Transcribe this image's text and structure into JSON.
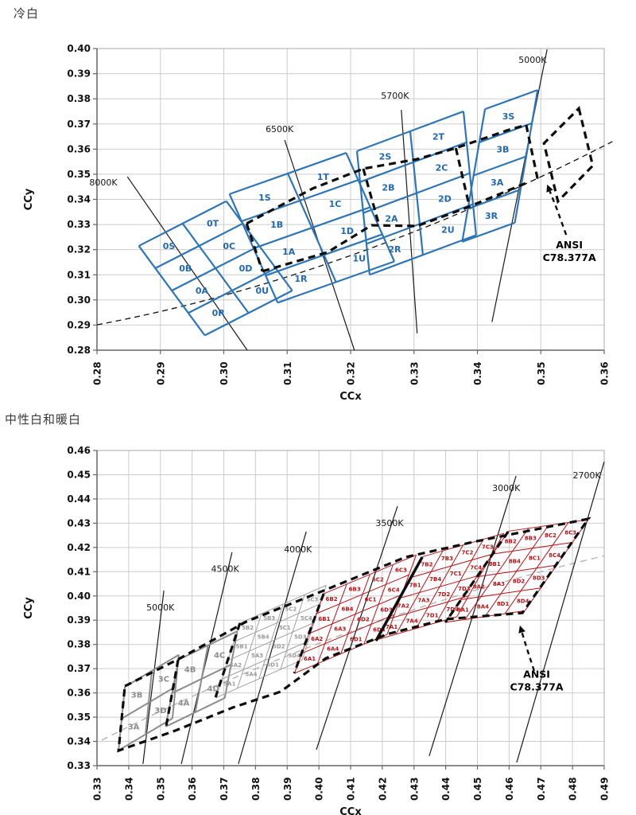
{
  "page": {
    "title_cool": "冷白",
    "title_warm": "中性白和暖白"
  },
  "colors": {
    "grid": "#cccccc",
    "border": "#aaaaaa",
    "axis": "#666666",
    "tick_text": "#111111",
    "blue_mesh": "#2e75b6",
    "blue_label": "#2269ad",
    "gray_mesh": "#8c8c8c",
    "lightgray_mesh": "#a0a0a0",
    "red_mesh": "#b41216",
    "ansi_dash": "#0d0d0d",
    "locus_black": "#111111",
    "locus_gray": "#b0b0b0"
  },
  "ansi_note": "ANSI C78.377A",
  "chart_data": [
    {
      "type": "line",
      "name": "cool-white-binning",
      "title": "冷白",
      "xlabel": "CCx",
      "ylabel": "CCy",
      "x_min": 0.28,
      "x_max": 0.36,
      "y_min": 0.28,
      "y_max": 0.4,
      "tick_step": 0.01,
      "grid": true,
      "groups": [
        {
          "name": "group-0",
          "o": [
            0.2866,
            0.3215
          ],
          "c": [
            0.0069,
            0.0089
          ],
          "r": [
            0.0026,
            -0.0089
          ],
          "cols": 2,
          "rows": 4,
          "color": "#2e75b6",
          "lc": "#2269ad",
          "fs": 11,
          "sw": 2.2,
          "labels": [
            [
              "0S",
              "0T"
            ],
            [
              "0B",
              "0C"
            ],
            [
              "0A",
              "0D"
            ],
            [
              "0R",
              "0U"
            ]
          ]
        },
        {
          "name": "group-1",
          "o": [
            0.3009,
            0.3421
          ],
          "c": [
            0.0092,
            0.0082
          ],
          "r": [
            0.0019,
            -0.0108
          ],
          "cols": 2,
          "rows": 4,
          "color": "#2e75b6",
          "lc": "#2269ad",
          "fs": 11,
          "sw": 2.2,
          "labels": [
            [
              "1S",
              "1T"
            ],
            [
              "1B",
              "1C"
            ],
            [
              "1A",
              "1D"
            ],
            [
              "1R",
              "1U"
            ]
          ]
        },
        {
          "name": "group-2",
          "o": [
            0.321,
            0.3592
          ],
          "c": [
            0.0084,
            0.0079
          ],
          "r": [
            0.0005,
            -0.0123
          ],
          "cols": 2,
          "rows": 4,
          "color": "#2e75b6",
          "lc": "#2269ad",
          "fs": 11,
          "sw": 2.2,
          "labels": [
            [
              "2S",
              "2T"
            ],
            [
              "2B",
              "2C"
            ],
            [
              "2A",
              "2D"
            ],
            [
              "2R",
              "2U"
            ]
          ]
        },
        {
          "name": "group-3",
          "o": [
            0.3412,
            0.3759
          ],
          "c": [
            0.0083,
            0.0076
          ],
          "r": [
            -0.0009,
            -0.0132
          ],
          "cols": 1,
          "rows": 4,
          "color": "#2e75b6",
          "lc": "#2269ad",
          "fs": 11,
          "sw": 2.2,
          "labels": [
            [
              "3S"
            ],
            [
              "3B"
            ],
            [
              "3A"
            ],
            [
              "3R"
            ]
          ]
        }
      ],
      "cct_lines": [
        {
          "label": "8000K",
          "x1": 0.2848,
          "y1": 0.349,
          "x2": 0.3037,
          "y2": 0.28,
          "lx": 0.281,
          "ly": 0.3455
        },
        {
          "label": "6500K",
          "x1": 0.3096,
          "y1": 0.3636,
          "x2": 0.3206,
          "y2": 0.28,
          "lx": 0.3088,
          "ly": 0.3667
        },
        {
          "label": "5700K",
          "x1": 0.328,
          "y1": 0.3756,
          "x2": 0.3305,
          "y2": 0.2867,
          "lx": 0.327,
          "ly": 0.38
        },
        {
          "label": "5000K",
          "x1": 0.351,
          "y1": 0.3997,
          "x2": 0.3423,
          "y2": 0.2912,
          "lx": 0.3487,
          "ly": 0.3943
        }
      ],
      "locus": {
        "x1": 0.28,
        "y1": 0.2901,
        "cx": 0.3194,
        "cy": 0.3088,
        "x2": 0.3613,
        "y2": 0.363,
        "color": "#111111",
        "dash": "7 5"
      },
      "overlay": [
        {
          "pts": [
            [
              0.3036,
              0.3304
            ],
            [
              0.314,
              0.3443
            ],
            [
              0.322,
              0.3522
            ],
            [
              0.3305,
              0.356
            ],
            [
              0.3366,
              0.3604
            ],
            [
              0.345,
              0.3677
            ],
            [
              0.3477,
              0.3696
            ]
          ],
          "style": "dash"
        },
        {
          "pts": [
            [
              0.3036,
              0.3304
            ],
            [
              0.3061,
              0.3114
            ]
          ],
          "style": "dash"
        },
        {
          "pts": [
            [
              0.3061,
              0.3114
            ],
            [
              0.3164,
              0.319
            ],
            [
              0.3233,
              0.3297
            ],
            [
              0.3305,
              0.3294
            ],
            [
              0.338,
              0.3364
            ],
            [
              0.3477,
              0.3465
            ]
          ],
          "style": "dash"
        },
        {
          "pts": [
            [
              0.3477,
              0.3696
            ],
            [
              0.3495,
              0.3481
            ]
          ],
          "style": "dash"
        },
        {
          "pts": [
            [
              0.322,
              0.3522
            ],
            [
              0.3245,
              0.3297
            ]
          ],
          "style": "dash"
        },
        {
          "pts": [
            [
              0.3366,
              0.3604
            ],
            [
              0.3387,
              0.3376
            ]
          ],
          "style": "dash"
        },
        {
          "pts": [
            [
              0.356,
              0.3762
            ],
            [
              0.3582,
              0.3534
            ],
            [
              0.3527,
              0.3392
            ],
            [
              0.3505,
              0.3623
            ]
          ],
          "closed": true,
          "style": "dash"
        }
      ],
      "ansi_arrow": {
        "tail": [
          [
            0.354,
            0.3259
          ],
          [
            0.3525,
            0.3364
          ]
        ],
        "head": [
          0.351,
          0.3459
        ],
        "label_lines": [
          "ANSI",
          "C78.377A"
        ],
        "label_pos": [
          0.3545,
          0.3205
        ]
      }
    },
    {
      "type": "line",
      "name": "neutral-warm-white-binning",
      "title": "中性白和暖白",
      "xlabel": "CCx",
      "ylabel": "CCy",
      "x_min": 0.33,
      "x_max": 0.49,
      "y_min": 0.33,
      "y_max": 0.46,
      "tick_step": 0.01,
      "grid": true,
      "groups": [
        {
          "name": "group-3",
          "o": [
            0.3388,
            0.3625
          ],
          "c": [
            0.0085,
            0.0066
          ],
          "r": [
            -0.001,
            -0.0131
          ],
          "cols": 2,
          "rows": 2,
          "color": "#8c8c8c",
          "lc": "#8c8c8c",
          "fs": 10,
          "sw": 2,
          "labels": [
            [
              "3B",
              "3C"
            ],
            [
              "3A",
              "3D"
            ]
          ]
        },
        {
          "name": "group-4",
          "o": [
            0.3557,
            0.3737
          ],
          "c": [
            0.0093,
            0.0059
          ],
          "r": [
            -0.002,
            -0.0138
          ],
          "cols": 2,
          "rows": 2,
          "color": "#8c8c8c",
          "lc": "#8c8c8c",
          "fs": 10,
          "sw": 2,
          "labels": [
            [
              "4B",
              "4C"
            ],
            [
              "4A",
              "4D"
            ]
          ]
        },
        {
          "name": "group-5",
          "o": [
            0.3751,
            0.3888
          ],
          "c": [
            0.0068,
            0.0039
          ],
          "r": [
            -0.0019,
            -0.0077
          ],
          "cols": 4,
          "rows": 4,
          "color": "#a0a0a0",
          "lc": "#999999",
          "fs": 7,
          "sw": 1,
          "labels": [
            [
              "5B2",
              "5B3",
              "5C2",
              "5C3"
            ],
            [
              "5B1",
              "5B4",
              "5C1",
              "5C4"
            ],
            [
              "5A2",
              "5A3",
              "5D2",
              "5D3"
            ],
            [
              "5A1",
              "5A4",
              "5D1",
              "5D4"
            ]
          ]
        },
        {
          "name": "group-6",
          "o": [
            0.4015,
            0.4009
          ],
          "c": [
            0.0073,
            0.004
          ],
          "r": [
            -0.0023,
            -0.0082
          ],
          "cols": 4,
          "rows": 4,
          "color": "#b41216",
          "lc": "#b41216",
          "fs": 7,
          "sw": 1,
          "labels": [
            [
              "6B2",
              "6B3",
              "6C2",
              "6C3"
            ],
            [
              "6B1",
              "6B4",
              "6C1",
              "6C4"
            ],
            [
              "6A2",
              "6A3",
              "6D2",
              "6D3"
            ],
            [
              "6A1",
              "6A4",
              "6D1",
              "6D4"
            ]
          ]
        },
        {
          "name": "group-7",
          "o": [
            0.4327,
            0.4162
          ],
          "c": [
            0.0064,
            0.0024
          ],
          "r": [
            -0.0037,
            -0.0086
          ],
          "cols": 4,
          "rows": 4,
          "color": "#b41216",
          "lc": "#b41216",
          "fs": 7,
          "sw": 1,
          "labels": [
            [
              "7B2",
              "7B3",
              "7C2",
              "7C3"
            ],
            [
              "7B1",
              "7B4",
              "7C1",
              "7C4"
            ],
            [
              "7A2",
              "7A3",
              "7D2",
              "7D3"
            ],
            [
              "7A1",
              "7A4",
              "7D1",
              "7D4"
            ]
          ]
        },
        {
          "name": "group-8",
          "o": [
            0.4598,
            0.4267
          ],
          "c": [
            0.0063,
            0.0012
          ],
          "r": [
            -0.005,
            -0.0094
          ],
          "cols": 4,
          "rows": 4,
          "color": "#b41216",
          "lc": "#b41216",
          "fs": 7,
          "sw": 1,
          "labels": [
            [
              "8B2",
              "8B3",
              "8C2",
              "8C3"
            ],
            [
              "8B1",
              "8B4",
              "8C1",
              "8C4"
            ],
            [
              "8A2",
              "8A3",
              "8D2",
              "8D3"
            ],
            [
              "8A1",
              "8A4",
              "8D1",
              "8D4"
            ]
          ]
        }
      ],
      "cct_lines": [
        {
          "label": "5000K",
          "x1": 0.3511,
          "y1": 0.4022,
          "x2": 0.3445,
          "y2": 0.3307,
          "lx": 0.35,
          "ly": 0.394
        },
        {
          "label": "4500K",
          "x1": 0.3726,
          "y1": 0.418,
          "x2": 0.3566,
          "y2": 0.3307,
          "lx": 0.3704,
          "ly": 0.41
        },
        {
          "label": "4000K",
          "x1": 0.396,
          "y1": 0.4265,
          "x2": 0.3746,
          "y2": 0.3307,
          "lx": 0.3934,
          "ly": 0.418
        },
        {
          "label": "3500K",
          "x1": 0.4248,
          "y1": 0.437,
          "x2": 0.3992,
          "y2": 0.3366,
          "lx": 0.4223,
          "ly": 0.4288
        },
        {
          "label": "3000K",
          "x1": 0.4622,
          "y1": 0.4495,
          "x2": 0.4348,
          "y2": 0.334,
          "lx": 0.4591,
          "ly": 0.4432
        },
        {
          "label": "2700K",
          "x1": 0.49,
          "y1": 0.4554,
          "x2": 0.4624,
          "y2": 0.3313,
          "lx": 0.4845,
          "ly": 0.4485
        }
      ],
      "locus": {
        "x1": 0.3315,
        "y1": 0.3405,
        "cx": 0.4072,
        "cy": 0.3911,
        "x2": 0.49,
        "y2": 0.4165,
        "color": "#b0b0b0",
        "dash": "8 6"
      },
      "overlay": [
        {
          "pts": [
            [
              0.3388,
              0.3628
            ],
            [
              0.3558,
              0.374
            ],
            [
              0.3771,
              0.3894
            ],
            [
              0.4015,
              0.4022
            ],
            [
              0.4273,
              0.416
            ],
            [
              0.4499,
              0.4226
            ],
            [
              0.485,
              0.4318
            ],
            [
              0.4642,
              0.393
            ],
            [
              0.4399,
              0.3904
            ],
            [
              0.4215,
              0.3842
            ],
            [
              0.4022,
              0.3743
            ],
            [
              0.3879,
              0.3605
            ],
            [
              0.3729,
              0.354
            ],
            [
              0.3546,
              0.3444
            ],
            [
              0.3368,
              0.3362
            ]
          ],
          "closed": true,
          "style": "dash"
        },
        {
          "pts": [
            [
              0.3556,
              0.3737
            ],
            [
              0.3518,
              0.3461
            ]
          ],
          "style": "dash"
        },
        {
          "pts": [
            [
              0.3751,
              0.3888
            ],
            [
              0.3674,
              0.3582
            ]
          ],
          "style": "dash"
        },
        {
          "pts": [
            [
              0.4015,
              0.4009
            ],
            [
              0.3922,
              0.3681
            ]
          ],
          "style": "dash"
        },
        {
          "pts": [
            [
              0.4597,
              0.4265
            ],
            [
              0.4399,
              0.3891
            ]
          ],
          "style": "dash"
        },
        {
          "pts": [
            [
              0.4326,
              0.416
            ],
            [
              0.418,
              0.3815
            ]
          ],
          "style": "solid"
        }
      ],
      "ansi_arrow": {
        "tail": [
          [
            0.4679,
            0.3691
          ],
          [
            0.4654,
            0.3792
          ]
        ],
        "head": [
          0.4634,
          0.3878
        ],
        "label_lines": [
          "ANSI",
          "C78.377A"
        ],
        "label_pos": [
          0.4687,
          0.3662
        ]
      }
    }
  ]
}
